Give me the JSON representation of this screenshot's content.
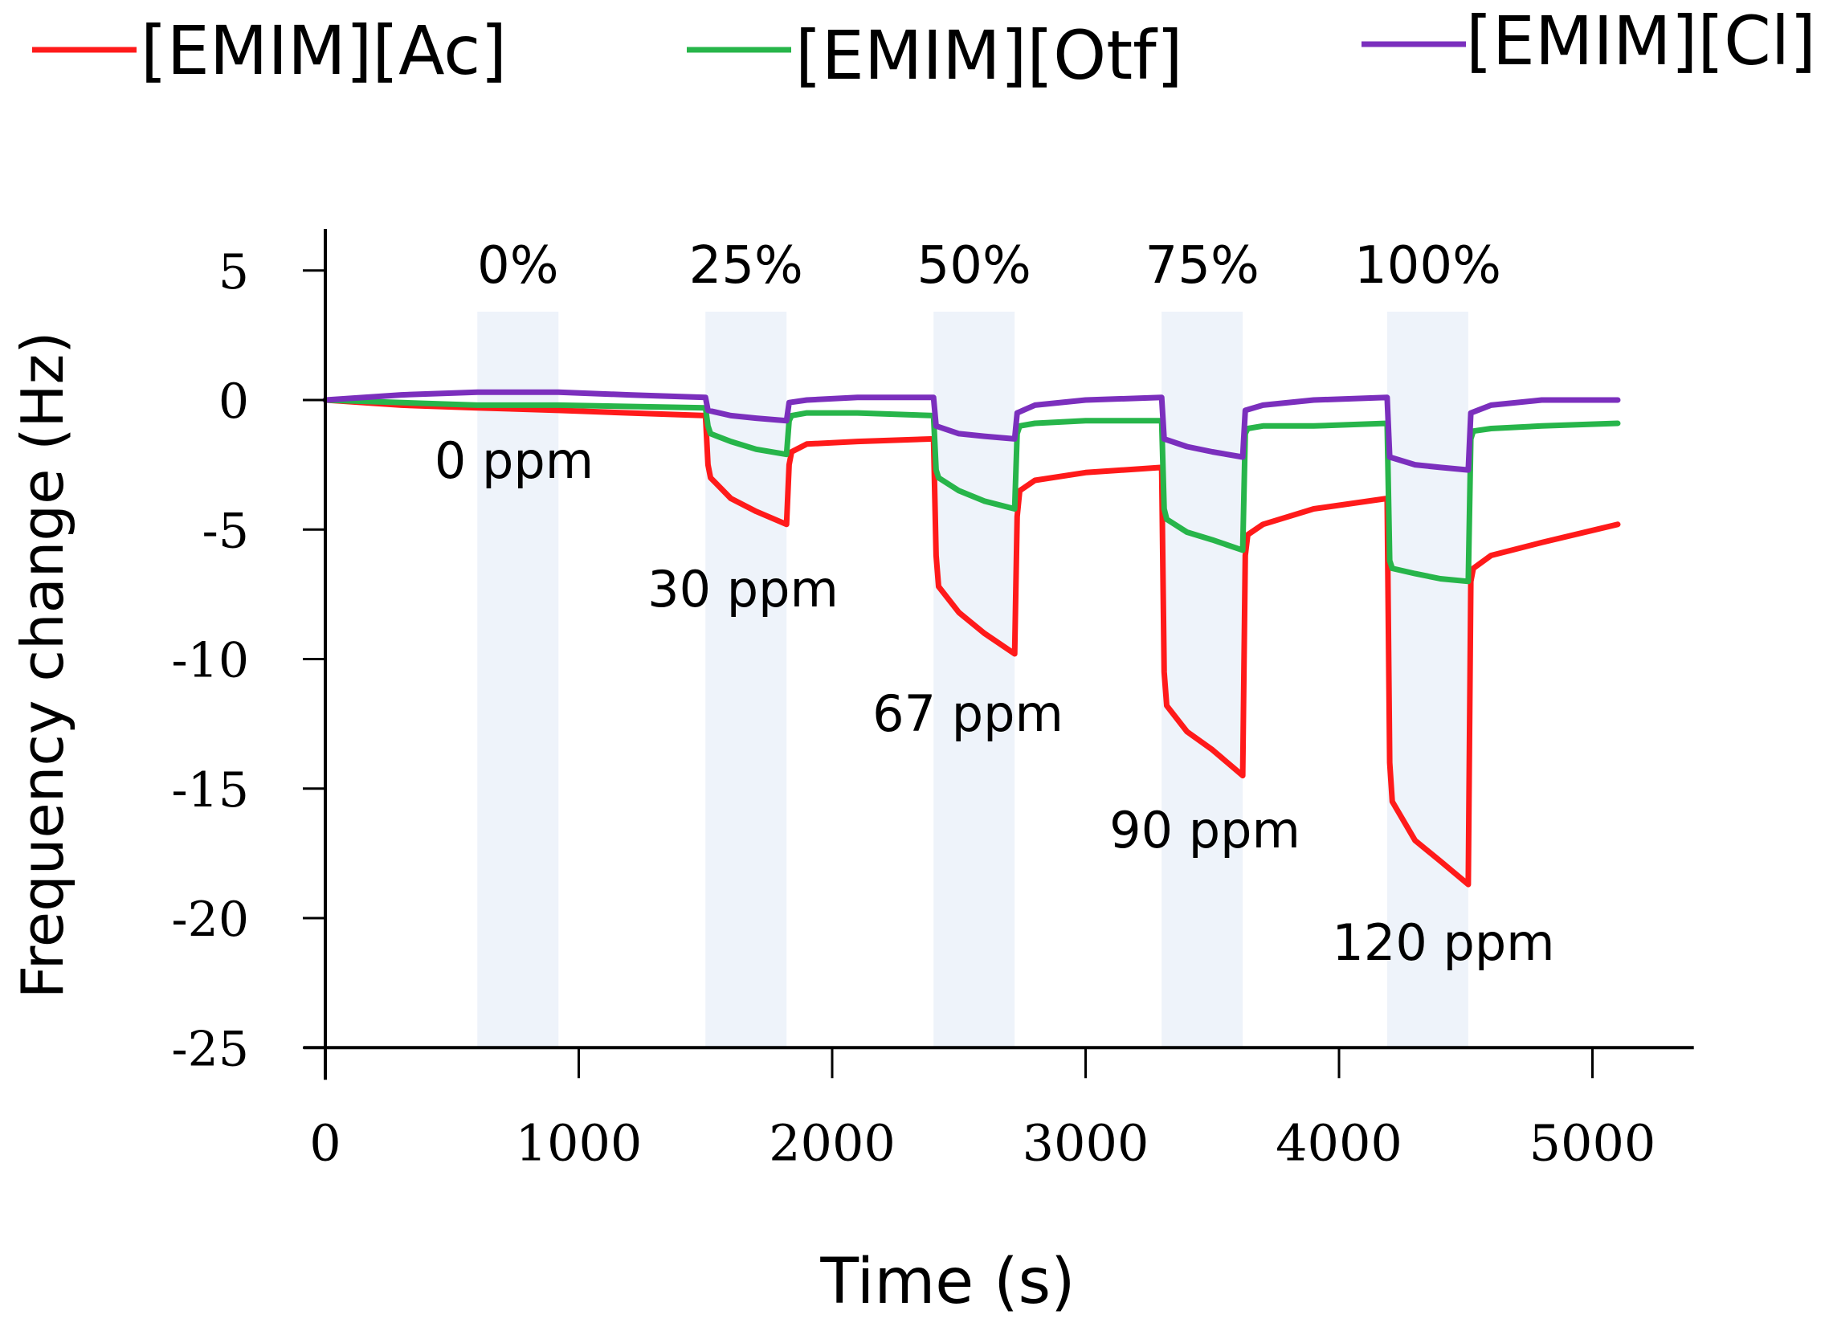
{
  "chart_data": {
    "type": "line",
    "title": "",
    "xlabel": "Time (s)",
    "ylabel": "Frequency change (Hz)",
    "xlim": [
      0,
      5400
    ],
    "ylim": [
      -25,
      6
    ],
    "xticks": [
      0,
      1000,
      2000,
      3000,
      4000,
      5000
    ],
    "xtick_labels": [
      "0",
      "1000",
      "2000",
      "3000",
      "4000",
      "5000"
    ],
    "yticks": [
      5,
      0,
      -5,
      -10,
      -15,
      -20,
      -25
    ],
    "ytick_labels": [
      "5",
      "0",
      "-5",
      "-10",
      "-15",
      "-20",
      "-25"
    ],
    "grid": false,
    "legend_position": "top",
    "exposures": [
      {
        "start": 600,
        "end": 920,
        "humidity": "0%",
        "concentration": "0 ppm"
      },
      {
        "start": 1500,
        "end": 1820,
        "humidity": "25%",
        "concentration": "30 ppm"
      },
      {
        "start": 2400,
        "end": 2720,
        "humidity": "50%",
        "concentration": "67 ppm"
      },
      {
        "start": 3300,
        "end": 3620,
        "humidity": "75%",
        "concentration": "90 ppm"
      },
      {
        "start": 4190,
        "end": 4510,
        "humidity": "100%",
        "concentration": "120 ppm"
      }
    ],
    "series": [
      {
        "name": "[EMIM][Ac]",
        "color": "#ff1a1a",
        "x": [
          0,
          300,
          600,
          920,
          1200,
          1500,
          1510,
          1520,
          1600,
          1700,
          1820,
          1830,
          1840,
          1900,
          2100,
          2400,
          2410,
          2420,
          2500,
          2600,
          2720,
          2730,
          2740,
          2800,
          3000,
          3300,
          3310,
          3320,
          3400,
          3500,
          3620,
          3630,
          3640,
          3700,
          3900,
          4190,
          4200,
          4210,
          4300,
          4400,
          4510,
          4520,
          4530,
          4600,
          4800,
          5100
        ],
        "y": [
          0,
          -0.2,
          -0.3,
          -0.4,
          -0.5,
          -0.6,
          -2.5,
          -3.0,
          -3.8,
          -4.3,
          -4.8,
          -2.5,
          -2.0,
          -1.7,
          -1.6,
          -1.5,
          -6.0,
          -7.2,
          -8.2,
          -9.0,
          -9.8,
          -4.5,
          -3.5,
          -3.1,
          -2.8,
          -2.6,
          -10.5,
          -11.8,
          -12.8,
          -13.5,
          -14.5,
          -6.0,
          -5.2,
          -4.8,
          -4.2,
          -3.8,
          -14.0,
          -15.5,
          -17.0,
          -17.8,
          -18.7,
          -7.0,
          -6.5,
          -6.0,
          -5.5,
          -4.8
        ]
      },
      {
        "name": "[EMIM][Otf]",
        "color": "#27b54a",
        "x": [
          0,
          600,
          920,
          1500,
          1510,
          1520,
          1600,
          1700,
          1820,
          1830,
          1840,
          1900,
          2100,
          2400,
          2410,
          2420,
          2500,
          2600,
          2720,
          2730,
          2740,
          2800,
          3000,
          3300,
          3310,
          3320,
          3400,
          3500,
          3620,
          3630,
          3640,
          3700,
          3900,
          4190,
          4200,
          4210,
          4300,
          4400,
          4510,
          4520,
          4530,
          4600,
          4800,
          5100
        ],
        "y": [
          0,
          -0.2,
          -0.2,
          -0.3,
          -1.0,
          -1.3,
          -1.6,
          -1.9,
          -2.1,
          -0.8,
          -0.6,
          -0.5,
          -0.5,
          -0.6,
          -2.7,
          -3.0,
          -3.5,
          -3.9,
          -4.2,
          -1.3,
          -1.0,
          -0.9,
          -0.8,
          -0.8,
          -4.2,
          -4.6,
          -5.1,
          -5.4,
          -5.8,
          -1.3,
          -1.1,
          -1.0,
          -1.0,
          -0.9,
          -6.2,
          -6.5,
          -6.7,
          -6.9,
          -7.0,
          -1.5,
          -1.2,
          -1.1,
          -1.0,
          -0.9
        ]
      },
      {
        "name": "[EMIM][Cl]",
        "color": "#7b2fbd",
        "x": [
          0,
          300,
          600,
          920,
          1200,
          1500,
          1510,
          1600,
          1700,
          1820,
          1830,
          1900,
          2100,
          2400,
          2410,
          2500,
          2600,
          2720,
          2730,
          2800,
          3000,
          3300,
          3310,
          3400,
          3500,
          3620,
          3630,
          3700,
          3900,
          4190,
          4200,
          4300,
          4400,
          4510,
          4520,
          4600,
          4800,
          5100
        ],
        "y": [
          0,
          0.2,
          0.3,
          0.3,
          0.2,
          0.1,
          -0.4,
          -0.6,
          -0.7,
          -0.8,
          -0.1,
          0.0,
          0.1,
          0.1,
          -1.0,
          -1.3,
          -1.4,
          -1.5,
          -0.5,
          -0.2,
          0.0,
          0.1,
          -1.5,
          -1.8,
          -2.0,
          -2.2,
          -0.4,
          -0.2,
          0.0,
          0.1,
          -2.2,
          -2.5,
          -2.6,
          -2.7,
          -0.5,
          -0.2,
          0.0,
          0.0
        ]
      }
    ]
  }
}
